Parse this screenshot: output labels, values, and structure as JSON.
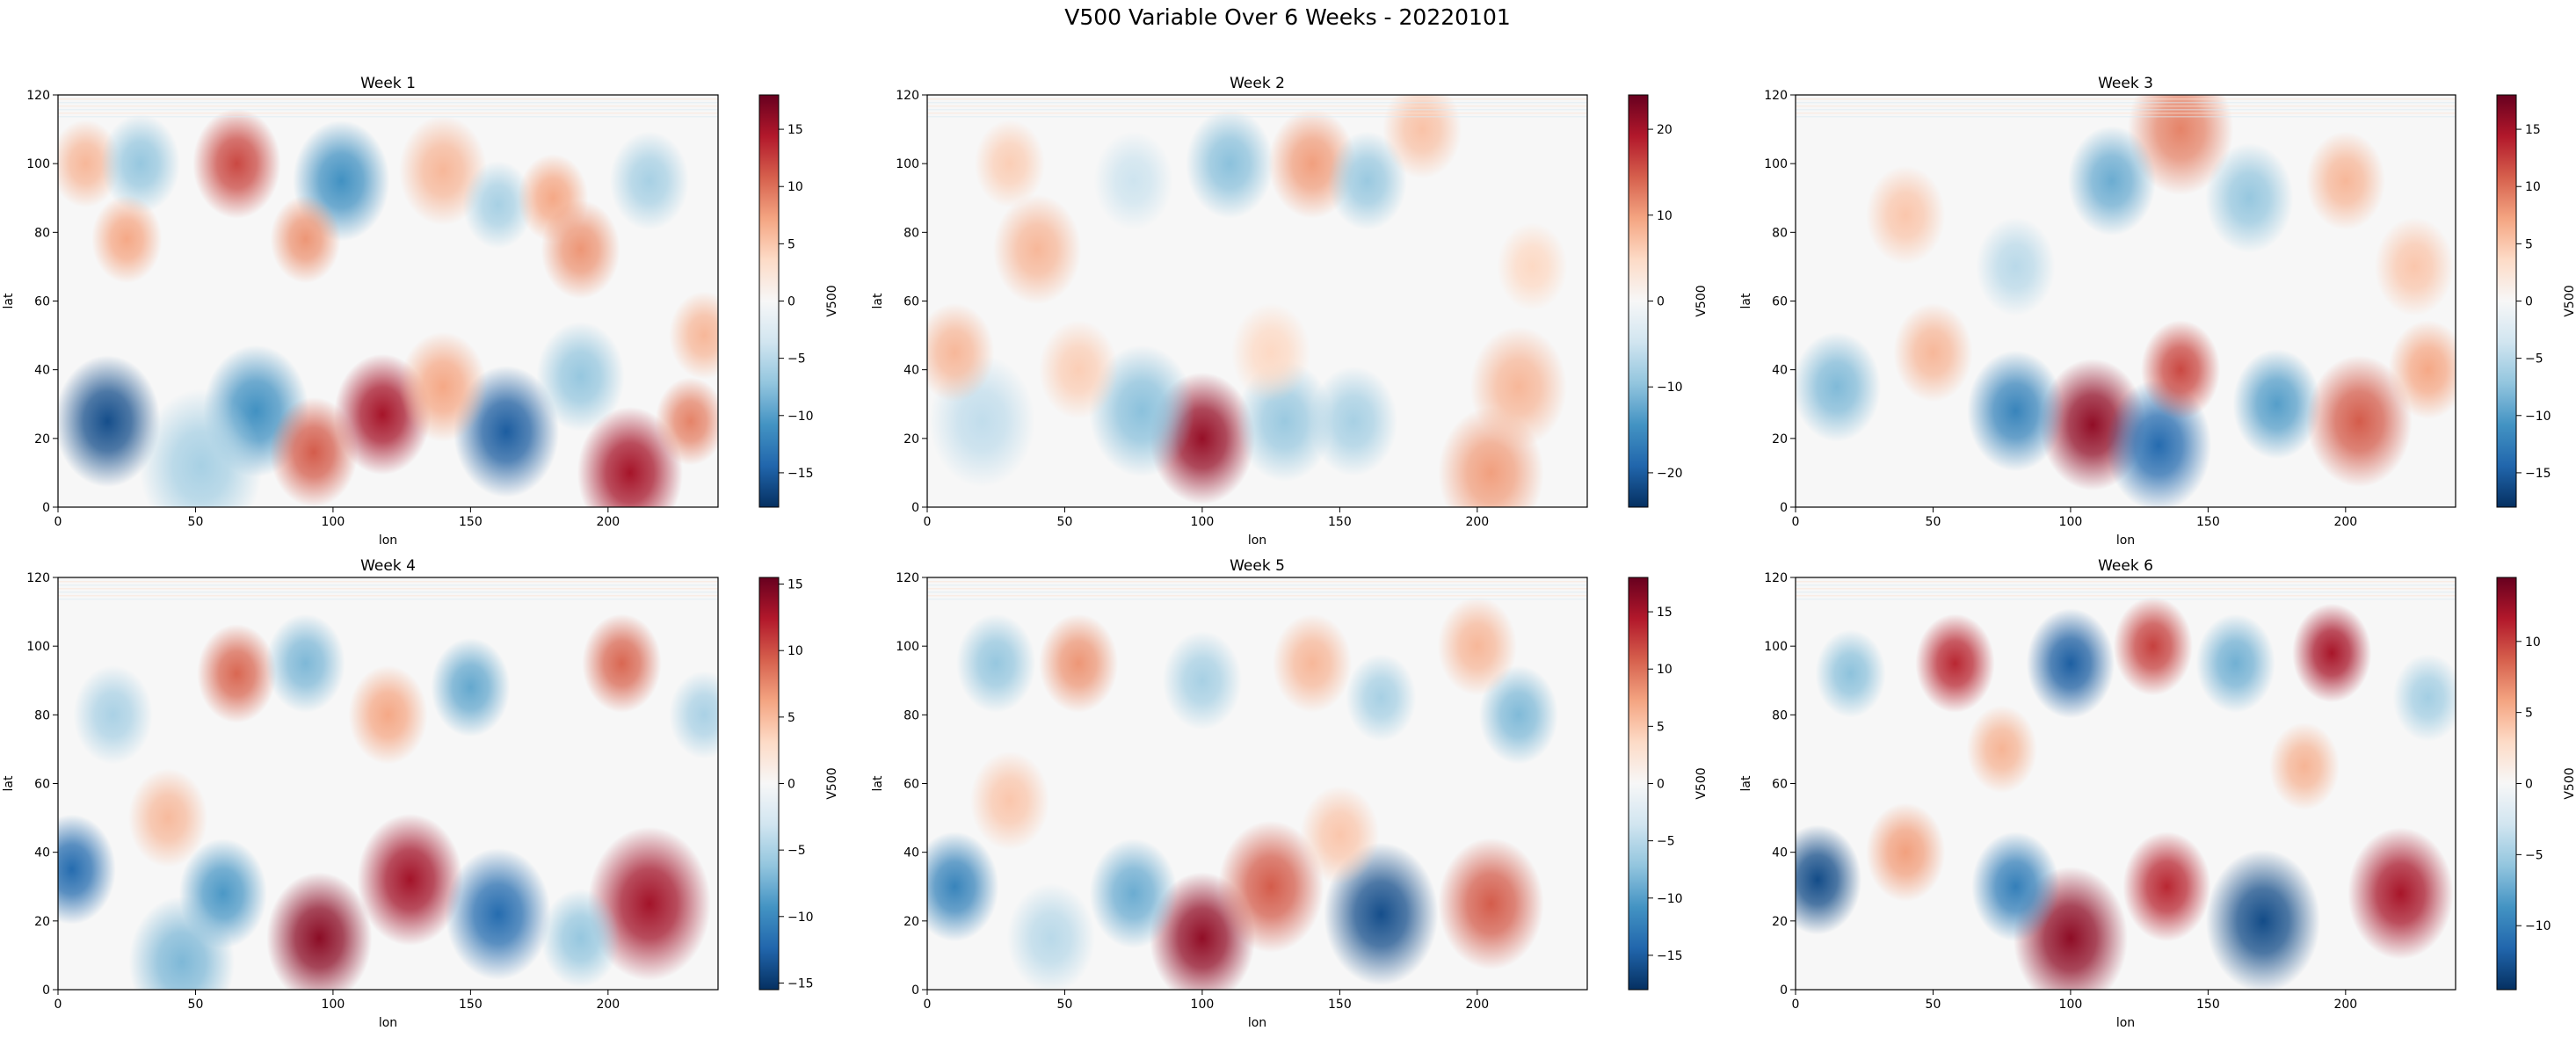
{
  "figure": {
    "title": "V500 Variable Over 6 Weeks - 20220101"
  },
  "chart_data": [
    {
      "type": "heatmap",
      "title": "Week 1",
      "xlabel": "lon",
      "ylabel": "lat",
      "colorbar_label": "V500",
      "xlim": [
        0,
        240
      ],
      "ylim": [
        0,
        120
      ],
      "xticks": [
        0,
        50,
        100,
        150,
        200
      ],
      "yticks": [
        0,
        20,
        40,
        60,
        80,
        100,
        120
      ],
      "vmin": -18,
      "vmax": 18,
      "cbar_ticks": [
        -15,
        -10,
        -5,
        0,
        5,
        10,
        15
      ],
      "blobs": [
        {
          "lon": 18,
          "lat": 25,
          "v": -16,
          "r": 12
        },
        {
          "lon": 72,
          "lat": 28,
          "v": -11,
          "r": 12
        },
        {
          "lon": 118,
          "lat": 27,
          "v": 15,
          "r": 11
        },
        {
          "lon": 93,
          "lat": 16,
          "v": 11,
          "r": 10
        },
        {
          "lon": 163,
          "lat": 22,
          "v": -15,
          "r": 12
        },
        {
          "lon": 208,
          "lat": 10,
          "v": 15,
          "r": 12
        },
        {
          "lon": 52,
          "lat": 12,
          "v": -6,
          "r": 14
        },
        {
          "lon": 190,
          "lat": 38,
          "v": -7,
          "r": 10
        },
        {
          "lon": 230,
          "lat": 25,
          "v": 9,
          "r": 8
        },
        {
          "lon": 140,
          "lat": 35,
          "v": 7,
          "r": 10
        },
        {
          "lon": 10,
          "lat": 100,
          "v": 6,
          "r": 8
        },
        {
          "lon": 30,
          "lat": 100,
          "v": -7,
          "r": 9
        },
        {
          "lon": 65,
          "lat": 100,
          "v": 12,
          "r": 10
        },
        {
          "lon": 103,
          "lat": 95,
          "v": -11,
          "r": 11
        },
        {
          "lon": 140,
          "lat": 98,
          "v": 6,
          "r": 10
        },
        {
          "lon": 160,
          "lat": 88,
          "v": -6,
          "r": 8
        },
        {
          "lon": 180,
          "lat": 90,
          "v": 7,
          "r": 8
        },
        {
          "lon": 190,
          "lat": 75,
          "v": 8,
          "r": 9
        },
        {
          "lon": 215,
          "lat": 95,
          "v": -6,
          "r": 9
        },
        {
          "lon": 25,
          "lat": 78,
          "v": 7,
          "r": 8
        },
        {
          "lon": 90,
          "lat": 78,
          "v": 8,
          "r": 8
        },
        {
          "lon": 235,
          "lat": 50,
          "v": 6,
          "r": 8
        }
      ]
    },
    {
      "type": "heatmap",
      "title": "Week 2",
      "xlabel": "lon",
      "ylabel": "lat",
      "colorbar_label": "V500",
      "xlim": [
        0,
        240
      ],
      "ylim": [
        0,
        120
      ],
      "xticks": [
        0,
        50,
        100,
        150,
        200
      ],
      "yticks": [
        0,
        20,
        40,
        60,
        80,
        100,
        120
      ],
      "vmin": -24,
      "vmax": 24,
      "cbar_ticks": [
        -20,
        -10,
        0,
        10,
        20
      ],
      "blobs": [
        {
          "lon": 100,
          "lat": 20,
          "v": 21,
          "r": 12
        },
        {
          "lon": 78,
          "lat": 28,
          "v": -10,
          "r": 12
        },
        {
          "lon": 130,
          "lat": 25,
          "v": -9,
          "r": 11
        },
        {
          "lon": 155,
          "lat": 25,
          "v": -8,
          "r": 10
        },
        {
          "lon": 205,
          "lat": 10,
          "v": 10,
          "r": 12
        },
        {
          "lon": 215,
          "lat": 35,
          "v": 8,
          "r": 11
        },
        {
          "lon": 20,
          "lat": 25,
          "v": -6,
          "r": 12
        },
        {
          "lon": 10,
          "lat": 45,
          "v": 8,
          "r": 9
        },
        {
          "lon": 55,
          "lat": 40,
          "v": 6,
          "r": 9
        },
        {
          "lon": 125,
          "lat": 45,
          "v": 5,
          "r": 9
        },
        {
          "lon": 110,
          "lat": 100,
          "v": -10,
          "r": 10
        },
        {
          "lon": 140,
          "lat": 100,
          "v": 10,
          "r": 10
        },
        {
          "lon": 160,
          "lat": 95,
          "v": -9,
          "r": 9
        },
        {
          "lon": 40,
          "lat": 75,
          "v": 8,
          "r": 10
        },
        {
          "lon": 30,
          "lat": 100,
          "v": 6,
          "r": 8
        },
        {
          "lon": 180,
          "lat": 110,
          "v": 7,
          "r": 9
        },
        {
          "lon": 75,
          "lat": 95,
          "v": -5,
          "r": 9
        },
        {
          "lon": 220,
          "lat": 70,
          "v": 5,
          "r": 8
        }
      ]
    },
    {
      "type": "heatmap",
      "title": "Week 3",
      "xlabel": "lon",
      "ylabel": "lat",
      "colorbar_label": "V500",
      "xlim": [
        0,
        240
      ],
      "ylim": [
        0,
        120
      ],
      "xticks": [
        0,
        50,
        100,
        150,
        200
      ],
      "yticks": [
        0,
        20,
        40,
        60,
        80,
        100,
        120
      ],
      "vmin": -18,
      "vmax": 18,
      "cbar_ticks": [
        -15,
        -10,
        -5,
        0,
        5,
        10,
        15
      ],
      "blobs": [
        {
          "lon": 108,
          "lat": 24,
          "v": 16,
          "r": 12
        },
        {
          "lon": 80,
          "lat": 28,
          "v": -12,
          "r": 11
        },
        {
          "lon": 132,
          "lat": 18,
          "v": -14,
          "r": 12
        },
        {
          "lon": 140,
          "lat": 40,
          "v": 12,
          "r": 9
        },
        {
          "lon": 175,
          "lat": 30,
          "v": -10,
          "r": 10
        },
        {
          "lon": 205,
          "lat": 25,
          "v": 11,
          "r": 12
        },
        {
          "lon": 15,
          "lat": 35,
          "v": -8,
          "r": 10
        },
        {
          "lon": 50,
          "lat": 45,
          "v": 6,
          "r": 9
        },
        {
          "lon": 230,
          "lat": 40,
          "v": 7,
          "r": 9
        },
        {
          "lon": 140,
          "lat": 110,
          "v": 9,
          "r": 12
        },
        {
          "lon": 115,
          "lat": 95,
          "v": -9,
          "r": 10
        },
        {
          "lon": 165,
          "lat": 90,
          "v": -7,
          "r": 10
        },
        {
          "lon": 200,
          "lat": 95,
          "v": 6,
          "r": 9
        },
        {
          "lon": 40,
          "lat": 85,
          "v": 5,
          "r": 9
        },
        {
          "lon": 80,
          "lat": 70,
          "v": -5,
          "r": 9
        },
        {
          "lon": 225,
          "lat": 70,
          "v": 5,
          "r": 9
        }
      ]
    },
    {
      "type": "heatmap",
      "title": "Week 4",
      "xlabel": "lon",
      "ylabel": "lat",
      "colorbar_label": "V500",
      "xlim": [
        0,
        240
      ],
      "ylim": [
        0,
        120
      ],
      "xticks": [
        0,
        50,
        100,
        150,
        200
      ],
      "yticks": [
        0,
        20,
        40,
        60,
        80,
        100,
        120
      ],
      "vmin": -15.5,
      "vmax": 15.5,
      "cbar_ticks": [
        -15,
        -10,
        -5,
        0,
        5,
        10,
        15
      ],
      "blobs": [
        {
          "lon": 5,
          "lat": 35,
          "v": -12,
          "r": 10
        },
        {
          "lon": 95,
          "lat": 15,
          "v": 14,
          "r": 12
        },
        {
          "lon": 128,
          "lat": 32,
          "v": 13,
          "r": 12
        },
        {
          "lon": 160,
          "lat": 22,
          "v": -12,
          "r": 12
        },
        {
          "lon": 215,
          "lat": 25,
          "v": 13,
          "r": 14
        },
        {
          "lon": 60,
          "lat": 28,
          "v": -9,
          "r": 10
        },
        {
          "lon": 45,
          "lat": 8,
          "v": -7,
          "r": 12
        },
        {
          "lon": 190,
          "lat": 15,
          "v": -6,
          "r": 9
        },
        {
          "lon": 65,
          "lat": 92,
          "v": 9,
          "r": 9
        },
        {
          "lon": 90,
          "lat": 95,
          "v": -7,
          "r": 9
        },
        {
          "lon": 150,
          "lat": 88,
          "v": -8,
          "r": 9
        },
        {
          "lon": 205,
          "lat": 95,
          "v": 9,
          "r": 9
        },
        {
          "lon": 120,
          "lat": 80,
          "v": 6,
          "r": 9
        },
        {
          "lon": 20,
          "lat": 80,
          "v": -5,
          "r": 9
        },
        {
          "lon": 235,
          "lat": 80,
          "v": -5,
          "r": 8
        },
        {
          "lon": 40,
          "lat": 50,
          "v": 5,
          "r": 9
        }
      ]
    },
    {
      "type": "heatmap",
      "title": "Week 5",
      "xlabel": "lon",
      "ylabel": "lat",
      "colorbar_label": "V500",
      "xlim": [
        0,
        240
      ],
      "ylim": [
        0,
        120
      ],
      "xticks": [
        0,
        50,
        100,
        150,
        200
      ],
      "yticks": [
        0,
        20,
        40,
        60,
        80,
        100,
        120
      ],
      "vmin": -18,
      "vmax": 18,
      "cbar_ticks": [
        -15,
        -10,
        -5,
        0,
        5,
        10,
        15
      ],
      "blobs": [
        {
          "lon": 10,
          "lat": 30,
          "v": -12,
          "r": 10
        },
        {
          "lon": 100,
          "lat": 15,
          "v": 16,
          "r": 12
        },
        {
          "lon": 125,
          "lat": 30,
          "v": 11,
          "r": 12
        },
        {
          "lon": 165,
          "lat": 22,
          "v": -16,
          "r": 13
        },
        {
          "lon": 205,
          "lat": 25,
          "v": 11,
          "r": 12
        },
        {
          "lon": 75,
          "lat": 28,
          "v": -9,
          "r": 10
        },
        {
          "lon": 150,
          "lat": 45,
          "v": 5,
          "r": 9
        },
        {
          "lon": 45,
          "lat": 15,
          "v": -5,
          "r": 10
        },
        {
          "lon": 55,
          "lat": 95,
          "v": 8,
          "r": 9
        },
        {
          "lon": 25,
          "lat": 95,
          "v": -7,
          "r": 9
        },
        {
          "lon": 100,
          "lat": 90,
          "v": -6,
          "r": 9
        },
        {
          "lon": 140,
          "lat": 95,
          "v": 6,
          "r": 9
        },
        {
          "lon": 165,
          "lat": 85,
          "v": -6,
          "r": 8
        },
        {
          "lon": 215,
          "lat": 80,
          "v": -8,
          "r": 9
        },
        {
          "lon": 200,
          "lat": 100,
          "v": 6,
          "r": 9
        },
        {
          "lon": 30,
          "lat": 55,
          "v": 5,
          "r": 9
        }
      ]
    },
    {
      "type": "heatmap",
      "title": "Week 6",
      "xlabel": "lon",
      "ylabel": "lat",
      "colorbar_label": "V500",
      "xlim": [
        0,
        240
      ],
      "ylim": [
        0,
        120
      ],
      "xticks": [
        0,
        50,
        100,
        150,
        200
      ],
      "yticks": [
        0,
        20,
        40,
        60,
        80,
        100,
        120
      ],
      "vmin": -14.5,
      "vmax": 14.5,
      "cbar_ticks": [
        -10,
        -5,
        0,
        5,
        10
      ],
      "blobs": [
        {
          "lon": 8,
          "lat": 32,
          "v": -13,
          "r": 10
        },
        {
          "lon": 100,
          "lat": 15,
          "v": 13,
          "r": 13
        },
        {
          "lon": 135,
          "lat": 30,
          "v": 11,
          "r": 10
        },
        {
          "lon": 170,
          "lat": 20,
          "v": -13,
          "r": 13
        },
        {
          "lon": 220,
          "lat": 28,
          "v": 12,
          "r": 12
        },
        {
          "lon": 80,
          "lat": 30,
          "v": -10,
          "r": 10
        },
        {
          "lon": 40,
          "lat": 40,
          "v": 6,
          "r": 9
        },
        {
          "lon": 58,
          "lat": 95,
          "v": 11,
          "r": 9
        },
        {
          "lon": 100,
          "lat": 95,
          "v": -12,
          "r": 10
        },
        {
          "lon": 130,
          "lat": 100,
          "v": 10,
          "r": 9
        },
        {
          "lon": 160,
          "lat": 95,
          "v": -7,
          "r": 9
        },
        {
          "lon": 195,
          "lat": 98,
          "v": 12,
          "r": 9
        },
        {
          "lon": 20,
          "lat": 92,
          "v": -6,
          "r": 8
        },
        {
          "lon": 230,
          "lat": 85,
          "v": -5,
          "r": 8
        },
        {
          "lon": 75,
          "lat": 70,
          "v": 5,
          "r": 8
        },
        {
          "lon": 185,
          "lat": 65,
          "v": 5,
          "r": 8
        }
      ]
    }
  ]
}
